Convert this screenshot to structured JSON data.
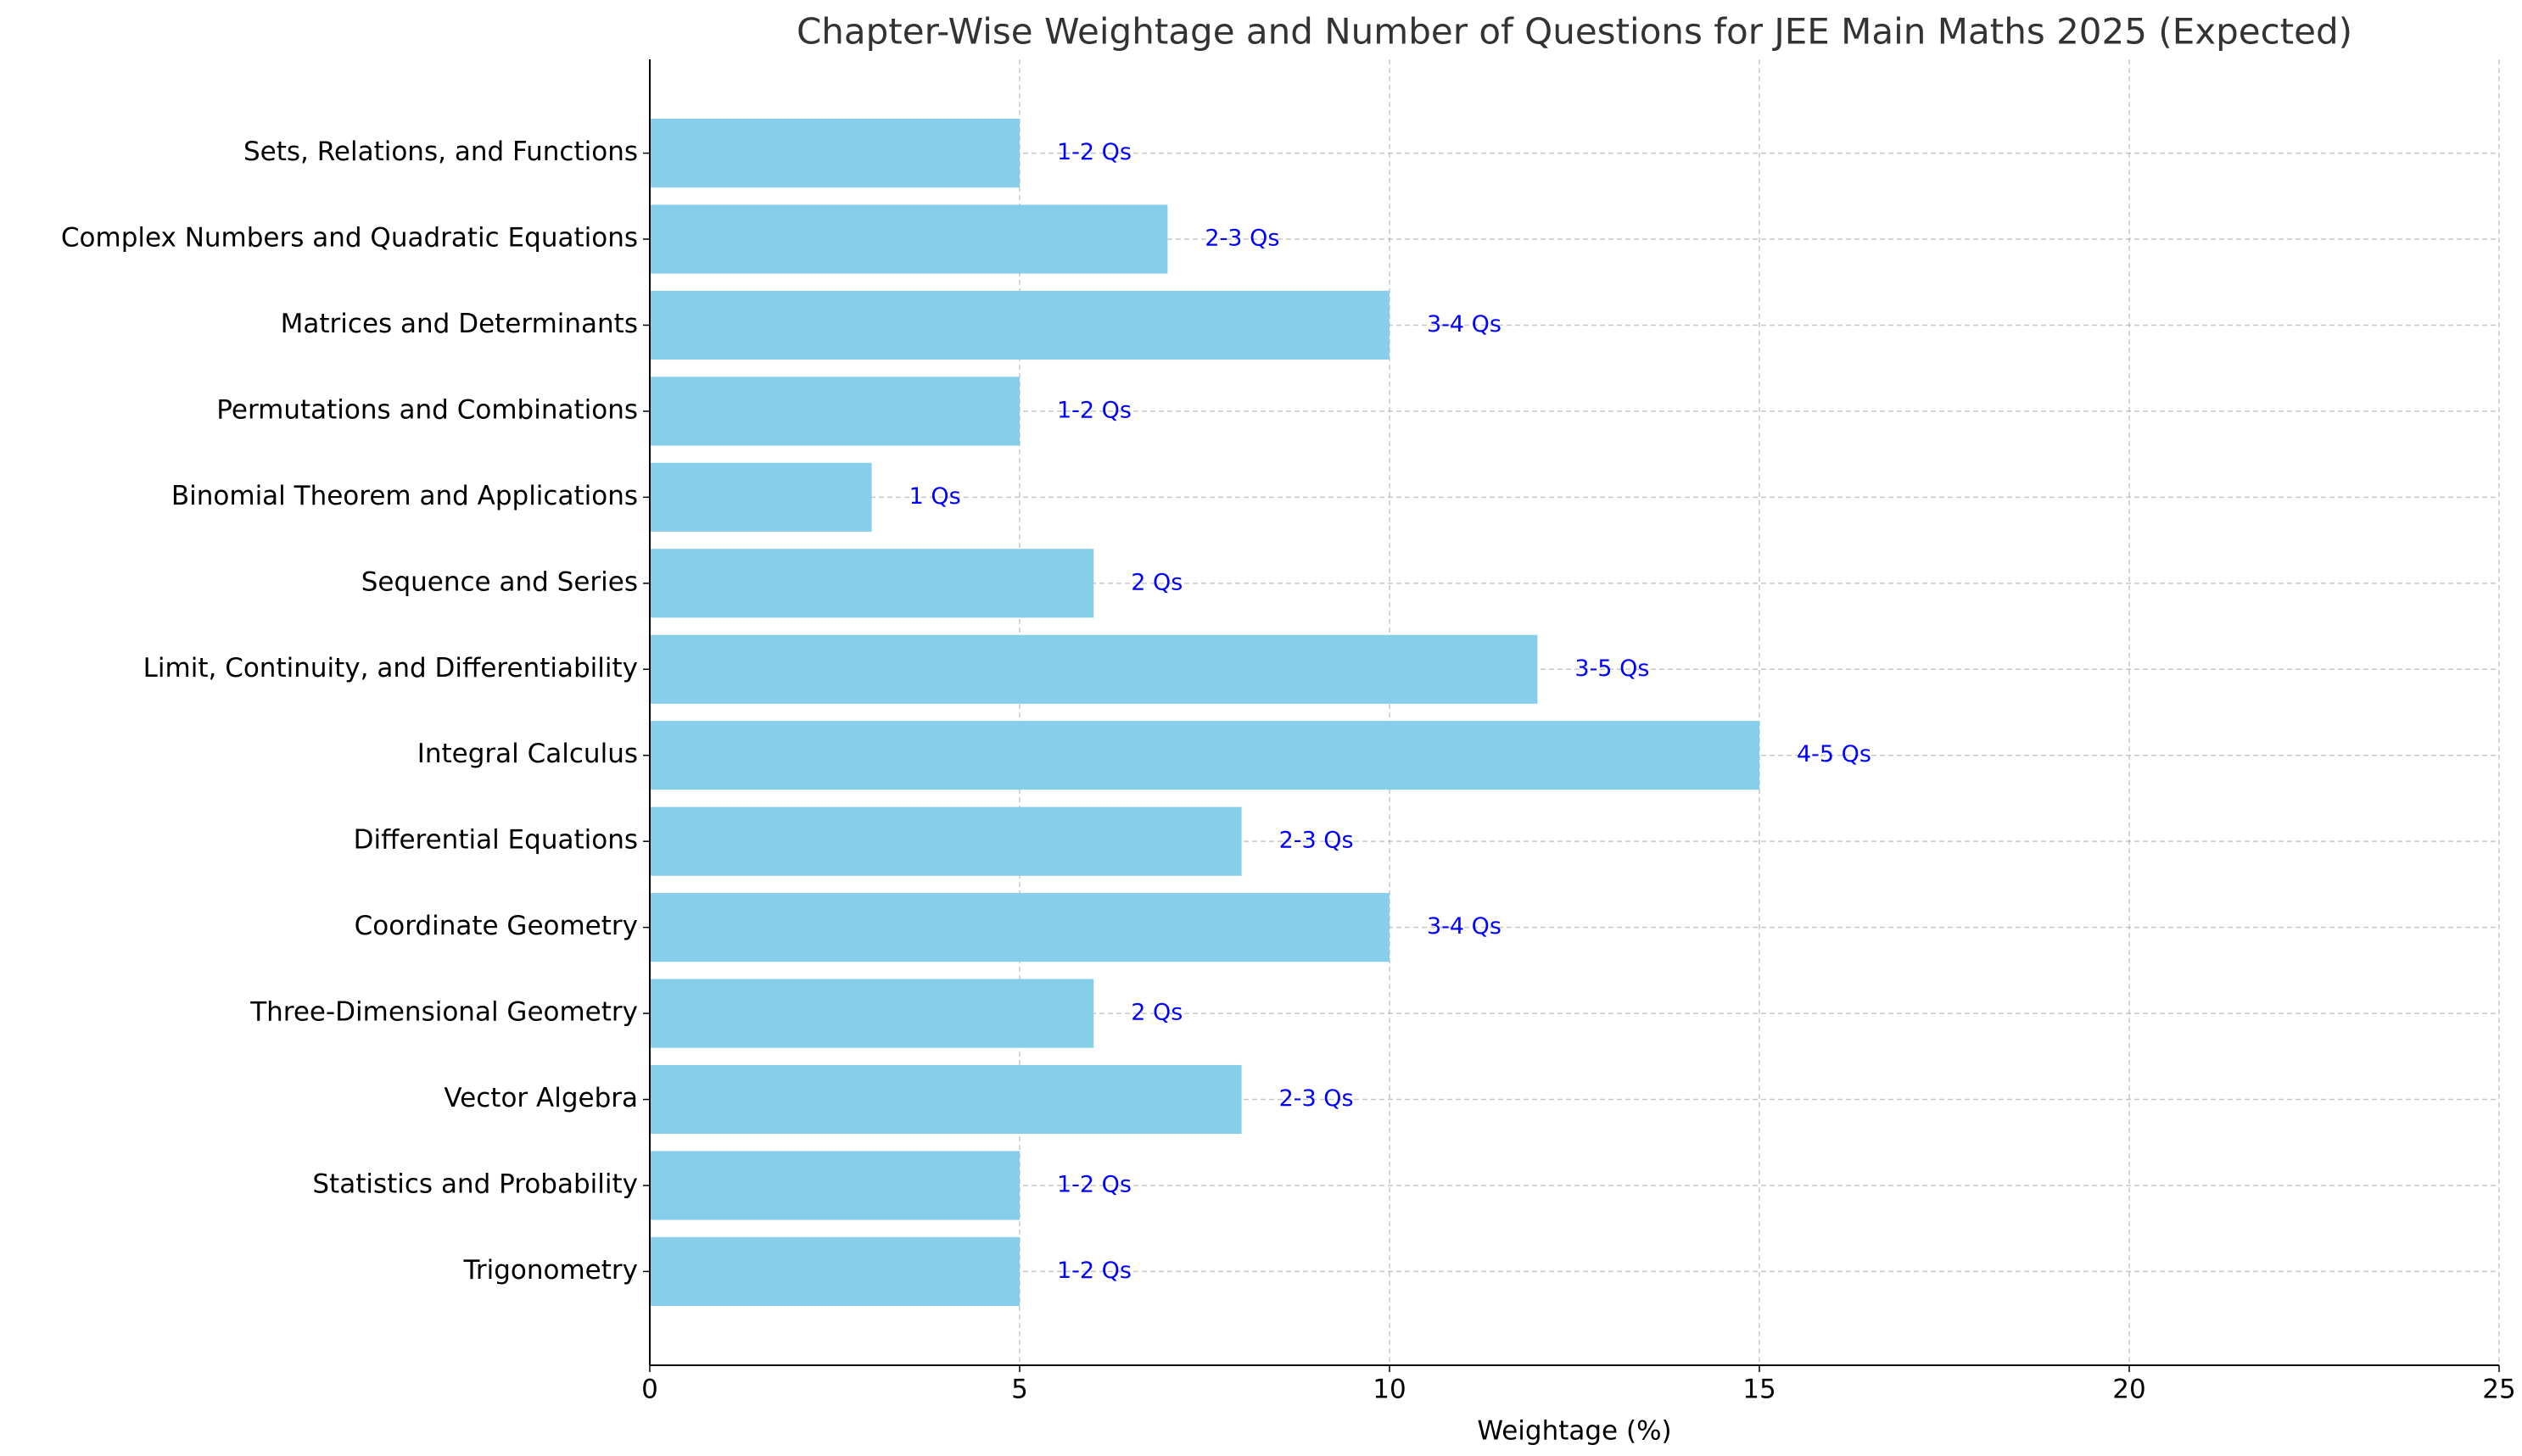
{
  "chart_data": {
    "type": "barh",
    "title": "Chapter-Wise Weightage and Number of Questions for JEE Main Maths 2025 (Expected)",
    "xlabel": "Weightage (%)",
    "categories": [
      "Sets, Relations, and Functions",
      "Complex Numbers and Quadratic Equations",
      "Matrices and Determinants",
      "Permutations and Combinations",
      "Binomial Theorem and Applications",
      "Sequence and Series",
      "Limit, Continuity, and Differentiability",
      "Integral Calculus",
      "Differential Equations",
      "Coordinate Geometry",
      "Three-Dimensional Geometry",
      "Vector Algebra",
      "Statistics and Probability",
      "Trigonometry"
    ],
    "values": [
      5,
      7,
      10,
      5,
      3,
      6,
      12,
      15,
      8,
      10,
      6,
      8,
      5,
      5
    ],
    "annotations": [
      "1-2 Qs",
      "2-3 Qs",
      "3-4 Qs",
      "1-2 Qs",
      "1 Qs",
      "2 Qs",
      "3-5 Qs",
      "4-5 Qs",
      "2-3 Qs",
      "3-4 Qs",
      "2 Qs",
      "2-3 Qs",
      "1-2 Qs",
      "1-2 Qs"
    ],
    "color": "#87ceeb",
    "annotation_color": "#0000ff",
    "xlim": [
      0,
      25
    ],
    "xticks": [
      0,
      5,
      10,
      15,
      20,
      25
    ],
    "grid": true
  }
}
